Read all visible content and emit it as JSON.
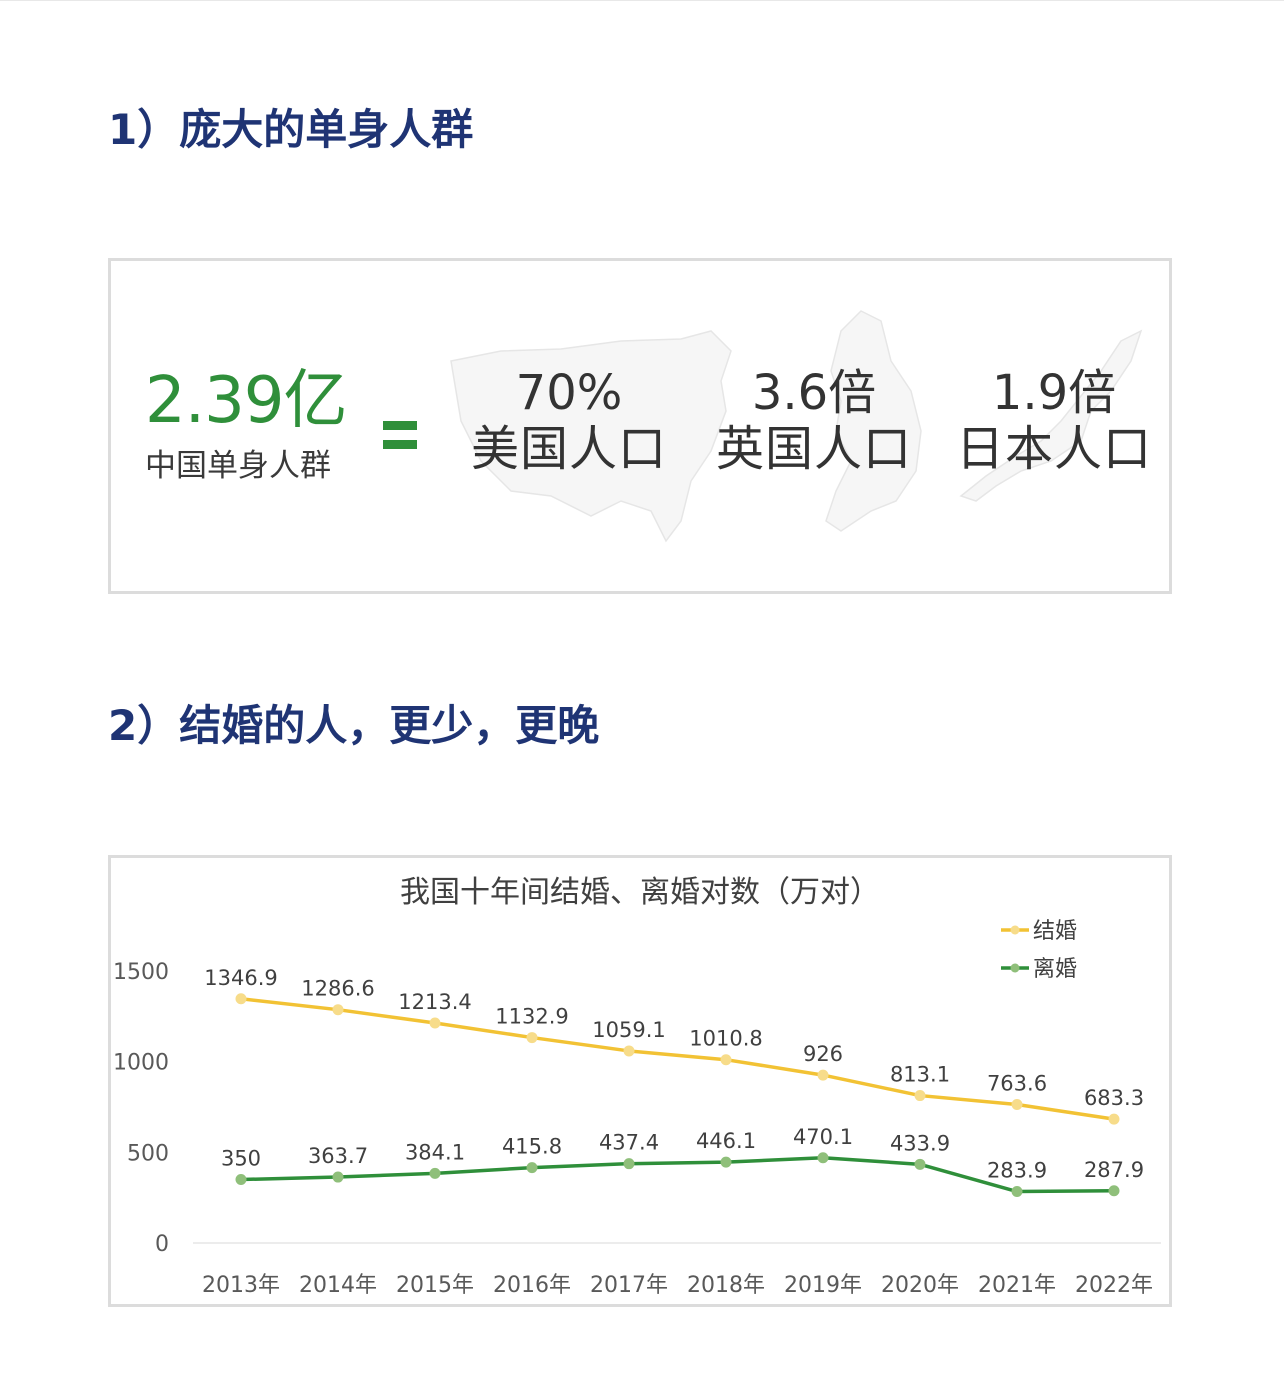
{
  "section1": {
    "heading": "1）庞大的单身人群",
    "single_count": "2.39亿",
    "single_label": "中国单身人群",
    "comparisons": [
      {
        "value": "70%",
        "label": "美国人口"
      },
      {
        "value": "3.6倍",
        "label": "英国人口"
      },
      {
        "value": "1.9倍",
        "label": "日本人口"
      }
    ],
    "colors": {
      "accent": "#2f8f3a",
      "heading": "#1f3474"
    }
  },
  "section2": {
    "heading": "2）结婚的人，更少，更晚"
  },
  "chart_data": {
    "type": "line",
    "title": "我国十年间结婚、离婚对数（万对）",
    "xlabel": "",
    "ylabel": "",
    "categories": [
      "2013年",
      "2014年",
      "2015年",
      "2016年",
      "2017年",
      "2018年",
      "2019年",
      "2020年",
      "2021年",
      "2022年"
    ],
    "series": [
      {
        "name": "结婚",
        "color": "#f2c234",
        "marker_color": "#f7dc8a",
        "values": [
          1346.9,
          1286.6,
          1213.4,
          1132.9,
          1059.1,
          1010.8,
          926,
          813.1,
          763.6,
          683.3
        ],
        "labels": [
          "1346.9",
          "1286.6",
          "1213.4",
          "1132.9",
          "1059.1",
          "1010.8",
          "926",
          "813.1",
          "763.6",
          "683.3"
        ]
      },
      {
        "name": "离婚",
        "color": "#2f8f3a",
        "marker_color": "#8fbf7a",
        "values": [
          350,
          363.7,
          384.1,
          415.8,
          437.4,
          446.1,
          470.1,
          433.9,
          283.9,
          287.9
        ],
        "labels": [
          "350",
          "363.7",
          "384.1",
          "415.8",
          "437.4",
          "446.1",
          "470.1",
          "433.9",
          "283.9",
          "287.9"
        ]
      }
    ],
    "yticks": [
      "0",
      "500",
      "1000",
      "1500"
    ],
    "ylim": [
      0,
      1500
    ],
    "grid": false,
    "legend_position": "top-right"
  }
}
